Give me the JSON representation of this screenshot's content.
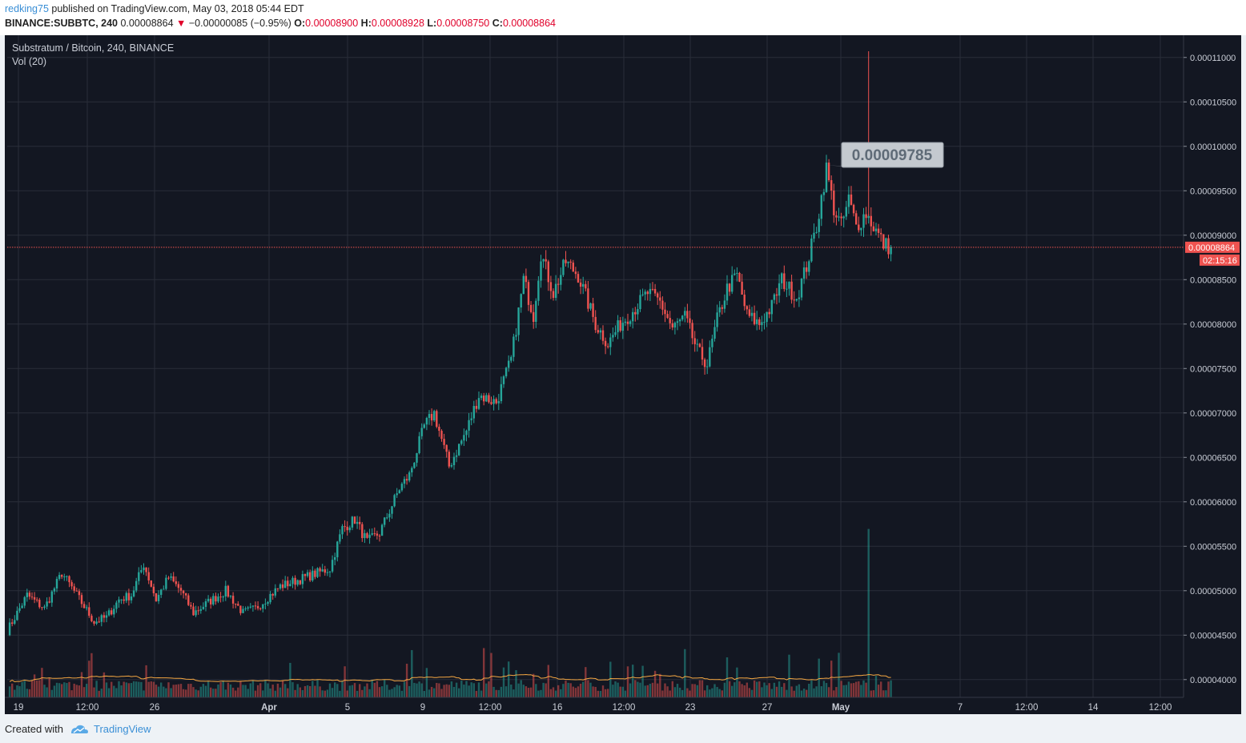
{
  "header": {
    "author": "redking75",
    "published_text": "published on TradingView.com, May 03, 2018 05:44 EDT",
    "symbol": "BINANCE:SUBBTC, 240",
    "last_price": "0.00008864",
    "change": "−0.00000085 (−0.95%)",
    "open_label": "O:",
    "open": "0.00008900",
    "high_label": "H:",
    "high": "0.00008928",
    "low_label": "L:",
    "low": "0.00008750",
    "close_label": "C:",
    "close": "0.00008864"
  },
  "legend": {
    "title": "Substratum / Bitcoin, 240, BINANCE",
    "volume": "Vol (20)"
  },
  "footer": {
    "created_with": "Created with",
    "brand": "TradingView"
  },
  "colors": {
    "background": "#131722",
    "grid": "#2a2e39",
    "up": "#26a69a",
    "down": "#ef5350",
    "volume_ma": "#f5a742",
    "price_line": "#ef5350",
    "callout_bg": "#c4c9cf",
    "callout_text": "#5f6b77"
  },
  "chart_data": {
    "type": "candlestick",
    "interval": "240",
    "y_axis": {
      "min": 3.8e-05,
      "max": 0.0001125,
      "ticks": [
        "0.00011000",
        "0.00010500",
        "0.00010000",
        "0.00009500",
        "0.00009000",
        "0.00008500",
        "0.00008000",
        "0.00007500",
        "0.00007000",
        "0.00006500",
        "0.00006000",
        "0.00005500",
        "0.00005000",
        "0.00004500",
        "0.00004000"
      ]
    },
    "x_axis": {
      "labels": [
        "19",
        "12:00",
        "26",
        "Apr",
        "5",
        "9",
        "12:00",
        "16",
        "12:00",
        "23",
        "27",
        "May",
        "7",
        "12:00",
        "14",
        "12:00"
      ],
      "bold_labels": [
        "Apr",
        "May"
      ]
    },
    "current_price": {
      "value": 8.864e-05,
      "label": "0.00008864",
      "countdown": "02:15:16"
    },
    "annotation": {
      "text": "0.00009785",
      "value": 9.785e-05
    },
    "waypoints": [
      [
        0,
        4.55e-05
      ],
      [
        8,
        4.95e-05
      ],
      [
        15,
        4.8e-05
      ],
      [
        22,
        5.2e-05
      ],
      [
        28,
        4.95e-05
      ],
      [
        35,
        4.65e-05
      ],
      [
        40,
        4.7e-05
      ],
      [
        45,
        4.9e-05
      ],
      [
        50,
        4.95e-05
      ],
      [
        55,
        5.3e-05
      ],
      [
        60,
        4.9e-05
      ],
      [
        65,
        5.15e-05
      ],
      [
        70,
        5e-05
      ],
      [
        75,
        4.75e-05
      ],
      [
        80,
        4.85e-05
      ],
      [
        88,
        5e-05
      ],
      [
        95,
        4.75e-05
      ],
      [
        100,
        4.8e-05
      ],
      [
        110,
        5.05e-05
      ],
      [
        120,
        5.15e-05
      ],
      [
        125,
        5.2e-05
      ],
      [
        130,
        5.25e-05
      ],
      [
        135,
        5.7e-05
      ],
      [
        140,
        5.8e-05
      ],
      [
        145,
        5.55e-05
      ],
      [
        150,
        5.65e-05
      ],
      [
        158,
        6.15e-05
      ],
      [
        162,
        6.3e-05
      ],
      [
        168,
        6.85e-05
      ],
      [
        172,
        7e-05
      ],
      [
        178,
        6.4e-05
      ],
      [
        185,
        6.8e-05
      ],
      [
        190,
        7.2e-05
      ],
      [
        197,
        7.12e-05
      ],
      [
        203,
        7.6e-05
      ],
      [
        208,
        8.5e-05
      ],
      [
        212,
        8.1e-05
      ],
      [
        215,
        8.8e-05
      ],
      [
        220,
        8.35e-05
      ],
      [
        225,
        8.7e-05
      ],
      [
        230,
        8.55e-05
      ],
      [
        237,
        8e-05
      ],
      [
        242,
        7.78e-05
      ],
      [
        247,
        8e-05
      ],
      [
        252,
        8.15e-05
      ],
      [
        258,
        8.35e-05
      ],
      [
        263,
        8.25e-05
      ],
      [
        268,
        7.95e-05
      ],
      [
        273,
        8.08e-05
      ],
      [
        278,
        7.7e-05
      ],
      [
        282,
        7.55e-05
      ],
      [
        286,
        8.05e-05
      ],
      [
        290,
        8.4e-05
      ],
      [
        294,
        8.55e-05
      ],
      [
        298,
        8.1e-05
      ],
      [
        303,
        8e-05
      ],
      [
        308,
        8.2e-05
      ],
      [
        312,
        8.5e-05
      ],
      [
        318,
        8.3e-05
      ],
      [
        322,
        8.65e-05
      ],
      [
        326,
        9.1e-05
      ],
      [
        330,
        9.75e-05
      ],
      [
        333,
        9.3e-05
      ],
      [
        336,
        9.1e-05
      ],
      [
        339,
        9.4e-05
      ],
      [
        342,
        9.1e-05
      ],
      [
        346,
        9.25e-05
      ],
      [
        350,
        9.05e-05
      ],
      [
        353,
        8.9e-05
      ],
      [
        356,
        8.86e-05
      ]
    ],
    "n_candles": 356,
    "volume": {
      "baseline": 4.1e-05,
      "big_bar_value": 5.695e-05,
      "big_bar_index": 347
    }
  }
}
